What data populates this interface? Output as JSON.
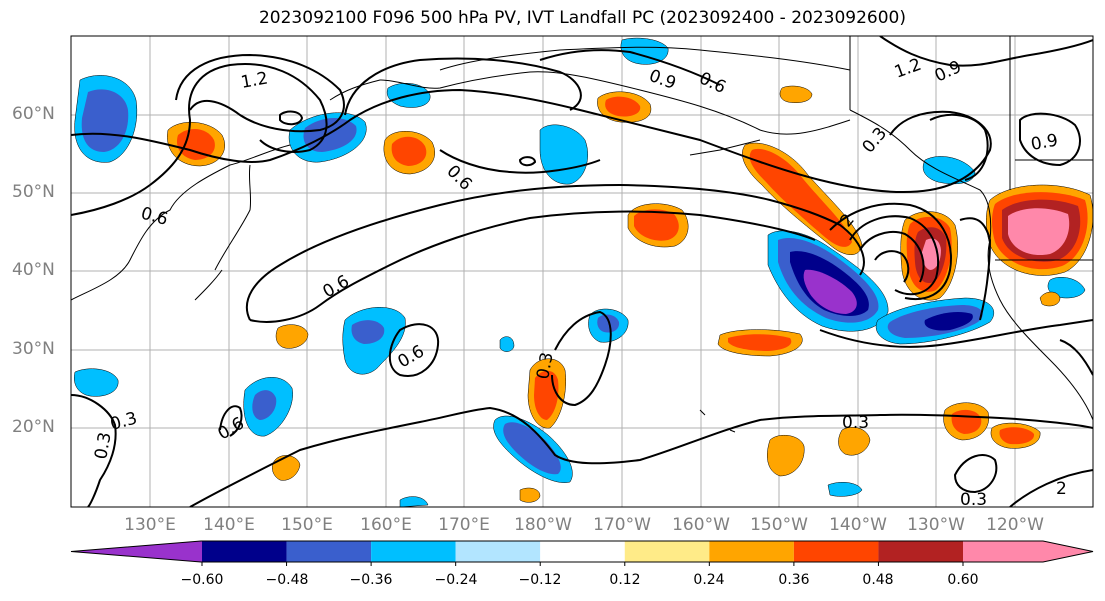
{
  "title": "2023092100 F096 500 hPa PV, IVT Landfall PC (2023092400 - 2023092600)",
  "lat_labels": [
    "60°N",
    "50°N",
    "40°N",
    "30°N",
    "20°N"
  ],
  "lon_labels": [
    "130°E",
    "140°E",
    "150°E",
    "160°E",
    "170°E",
    "180°W",
    "170°W",
    "160°W",
    "150°W",
    "140°W",
    "130°W",
    "120°W"
  ],
  "contour_labels": [
    "1.2",
    "1.2",
    "0.9",
    "0.9",
    "0.9",
    "0.6",
    "0.6",
    "0.6",
    "0.6",
    "0.6",
    "0.6",
    "0.3",
    "0.3",
    "0.3",
    "0.3",
    "0.3",
    "0.3",
    "2"
  ],
  "colorbar": {
    "ticks": [
      "−0.60",
      "−0.48",
      "−0.36",
      "−0.24",
      "−0.12",
      "0.12",
      "0.24",
      "0.36",
      "0.48",
      "0.60"
    ],
    "colors": [
      "#9932CC",
      "#00008B",
      "#3A5FCD",
      "#00BFFF",
      "#B2E5FF",
      "#FFFFFF",
      "#FFEB88",
      "#FFA500",
      "#FF4500",
      "#B22222",
      "#FF88AA"
    ]
  }
}
